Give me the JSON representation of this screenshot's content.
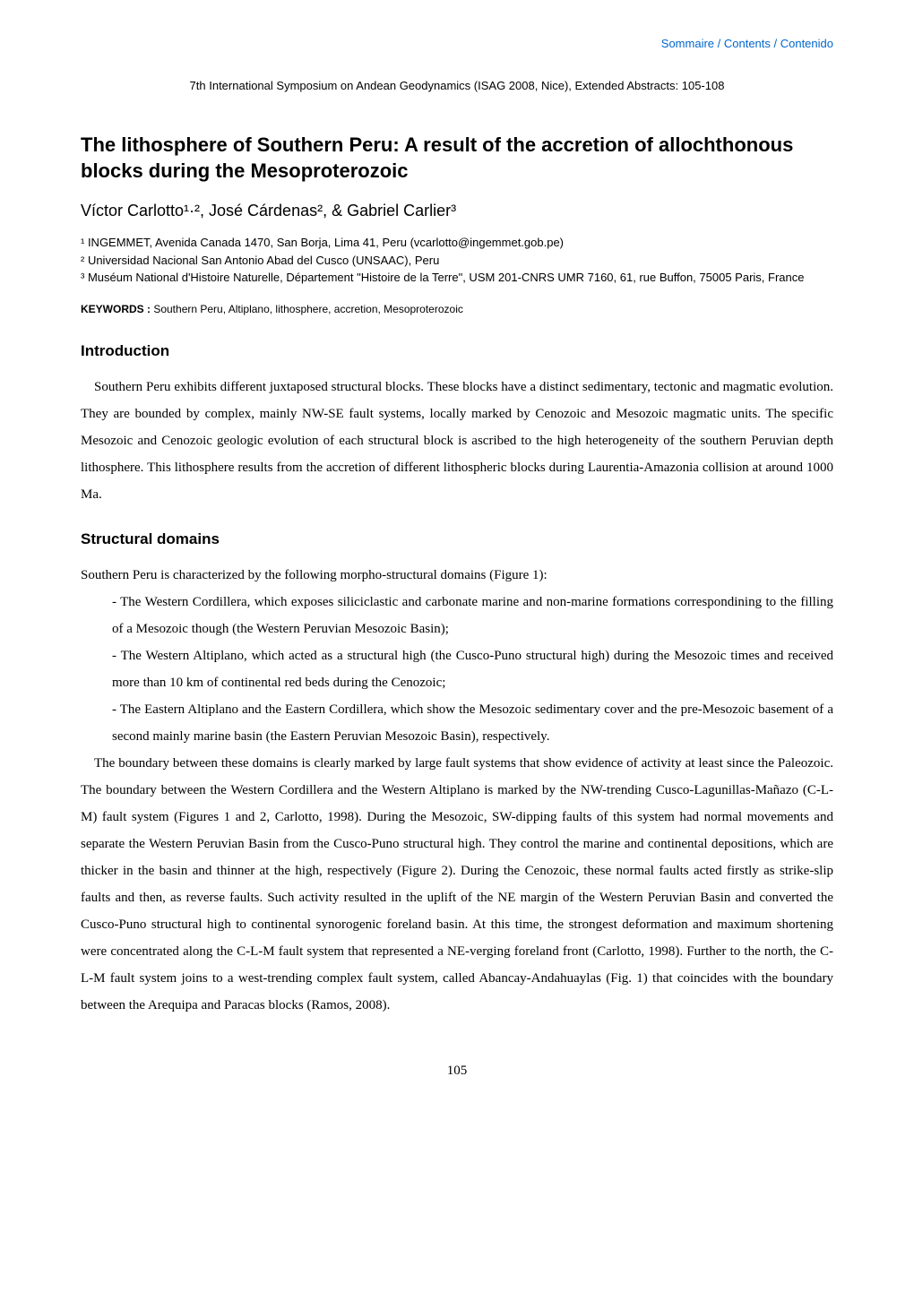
{
  "header": {
    "topLink": "Sommaire / Contents / Contenido",
    "conferenceHeader": "7th International Symposium on Andean Geodynamics (ISAG 2008, Nice), Extended Abstracts: 105-108"
  },
  "title": "The lithosphere of Southern Peru: A result of the accretion of allochthonous blocks during the Mesoproterozoic",
  "authors": "Víctor Carlotto¹·², José Cárdenas², & Gabriel Carlier³",
  "affiliations": [
    "¹ INGEMMET, Avenida Canada 1470, San Borja, Lima 41, Peru (vcarlotto@ingemmet.gob.pe)",
    "² Universidad Nacional San Antonio Abad del Cusco (UNSAAC), Peru",
    "³ Muséum National d'Histoire Naturelle, Département \"Histoire de la Terre\", USM 201-CNRS UMR 7160, 61, rue Buffon, 75005 Paris, France"
  ],
  "keywords": {
    "label": "KEYWORDS :",
    "text": " Southern Peru, Altiplano, lithosphere, accretion, Mesoproterozoic"
  },
  "sections": {
    "introduction": {
      "heading": "Introduction",
      "paragraph": "Southern Peru exhibits different juxtaposed structural blocks. These blocks have a distinct sedimentary, tectonic and magmatic evolution. They are bounded by complex, mainly NW-SE fault systems, locally marked by Cenozoic and Mesozoic magmatic units. The specific Mesozoic and Cenozoic geologic evolution of each structural block is ascribed to the high heterogeneity of the southern Peruvian depth lithosphere. This lithosphere results from the accretion of different lithospheric blocks during Laurentia-Amazonia collision at around 1000 Ma."
    },
    "structuralDomains": {
      "heading": "Structural domains",
      "intro": "Southern Peru is characterized by the following morpho-structural domains (Figure 1):",
      "domains": [
        "- The Western Cordillera, which exposes siliciclastic and carbonate marine and non-marine formations correspondining to the filling of a Mesozoic though (the Western Peruvian Mesozoic Basin);",
        "- The Western Altiplano, which acted as a structural high (the Cusco-Puno structural high) during the Mesozoic times and received more than 10 km of continental red beds during the Cenozoic;",
        "- The Eastern Altiplano and the Eastern Cordillera, which show the Mesozoic sedimentary cover and the pre-Mesozoic basement of a second mainly marine basin (the Eastern Peruvian Mesozoic Basin), respectively."
      ],
      "paragraph": "The boundary between these domains is clearly marked by large fault systems that show evidence of activity at least since the Paleozoic. The boundary between the Western Cordillera and the Western Altiplano is marked by the NW-trending Cusco-Lagunillas-Mañazo (C-L-M) fault system (Figures 1 and 2, Carlotto, 1998). During the Mesozoic, SW-dipping faults of this system had normal movements and separate the Western Peruvian Basin from the Cusco-Puno structural high. They control the marine and continental depositions, which are thicker in the basin and thinner at the high, respectively (Figure 2). During the Cenozoic, these normal faults acted firstly as strike-slip faults and then, as reverse faults. Such activity resulted in the uplift of the NE margin of the Western Peruvian Basin and converted the Cusco-Puno structural high to continental synorogenic foreland basin. At this time, the strongest deformation and maximum shortening were concentrated along the C-L-M fault system that represented a NE-verging foreland front (Carlotto, 1998). Further to the north, the C-L-M fault system joins to a west-trending complex fault system, called Abancay-Andahuaylas (Fig. 1) that coincides with the boundary between the Arequipa and Paracas blocks (Ramos, 2008)."
    }
  },
  "pageNumber": "105",
  "colors": {
    "linkColor": "#0066cc",
    "textColor": "#000000",
    "backgroundColor": "#ffffff"
  }
}
